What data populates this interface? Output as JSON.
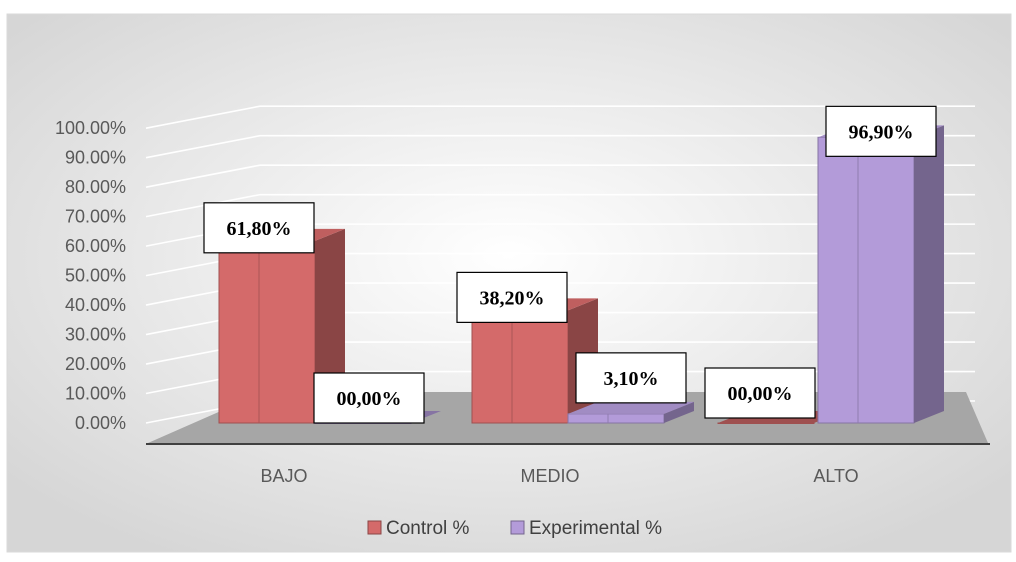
{
  "chart_data": {
    "type": "bar",
    "categories": [
      "BAJO",
      "MEDIO",
      "ALTO"
    ],
    "series": [
      {
        "name": "Control %",
        "values": [
          61.8,
          38.2,
          0.0
        ],
        "labels": [
          "61,80%",
          "38,20%",
          "00,00%"
        ],
        "color": "#D46A6A"
      },
      {
        "name": "Experimental %",
        "values": [
          0.0,
          3.1,
          96.9
        ],
        "labels": [
          "00,00%",
          "3,10%",
          "96,90%"
        ],
        "color": "#B39BD9"
      }
    ],
    "ylim": [
      0,
      100
    ],
    "yticks": [
      "0.00%",
      "10.00%",
      "20.00%",
      "30.00%",
      "40.00%",
      "50.00%",
      "60.00%",
      "70.00%",
      "80.00%",
      "90.00%",
      "100.00%"
    ],
    "grid": true,
    "legend_position": "bottom",
    "style": "3d-column",
    "title": "",
    "xlabel": "",
    "ylabel": ""
  }
}
